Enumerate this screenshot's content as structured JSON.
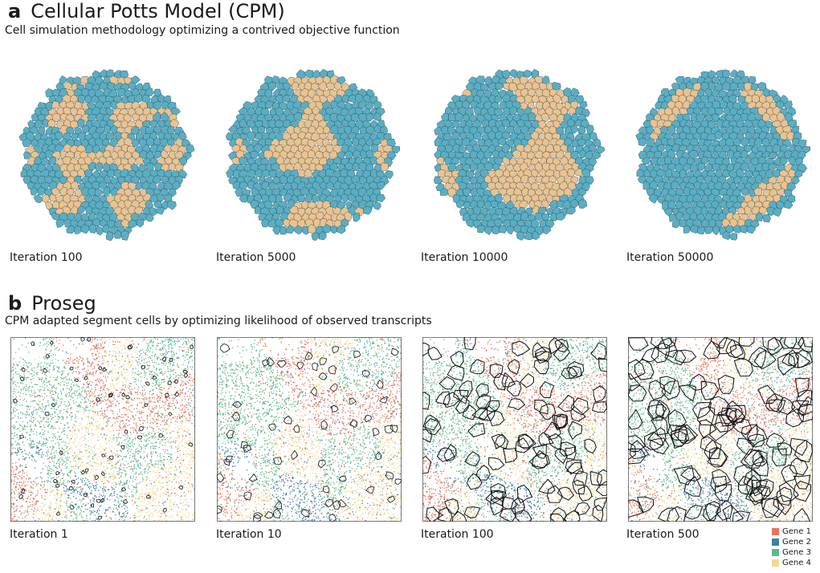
{
  "panel_a": {
    "letter": "a",
    "title": "Cellular Potts Model (CPM)",
    "subtitle": "Cell simulation methodology optimizing a contrived objective function",
    "captions": [
      "Iteration 100",
      "Iteration 5000",
      "Iteration 10000",
      "Iteration 50000"
    ]
  },
  "panel_b": {
    "letter": "b",
    "title": "Proseg",
    "subtitle": "CPM adapted segment cells by optimizing likelihood of observed transcripts",
    "captions": [
      "Iteration 1",
      "Iteration 10",
      "Iteration 100",
      "Iteration 500"
    ]
  },
  "legend": {
    "items": [
      {
        "label": "Gene 1",
        "color": "#e8735a"
      },
      {
        "label": "Gene 2",
        "color": "#3f7fa6"
      },
      {
        "label": "Gene 3",
        "color": "#5fb88f"
      },
      {
        "label": "Gene 4",
        "color": "#f2d894"
      }
    ]
  },
  "colors": {
    "cell_blue": "#5aaec4",
    "cell_tan": "#e9c391",
    "cell_edge": "#2b3f44",
    "boundary": "#111111"
  }
}
